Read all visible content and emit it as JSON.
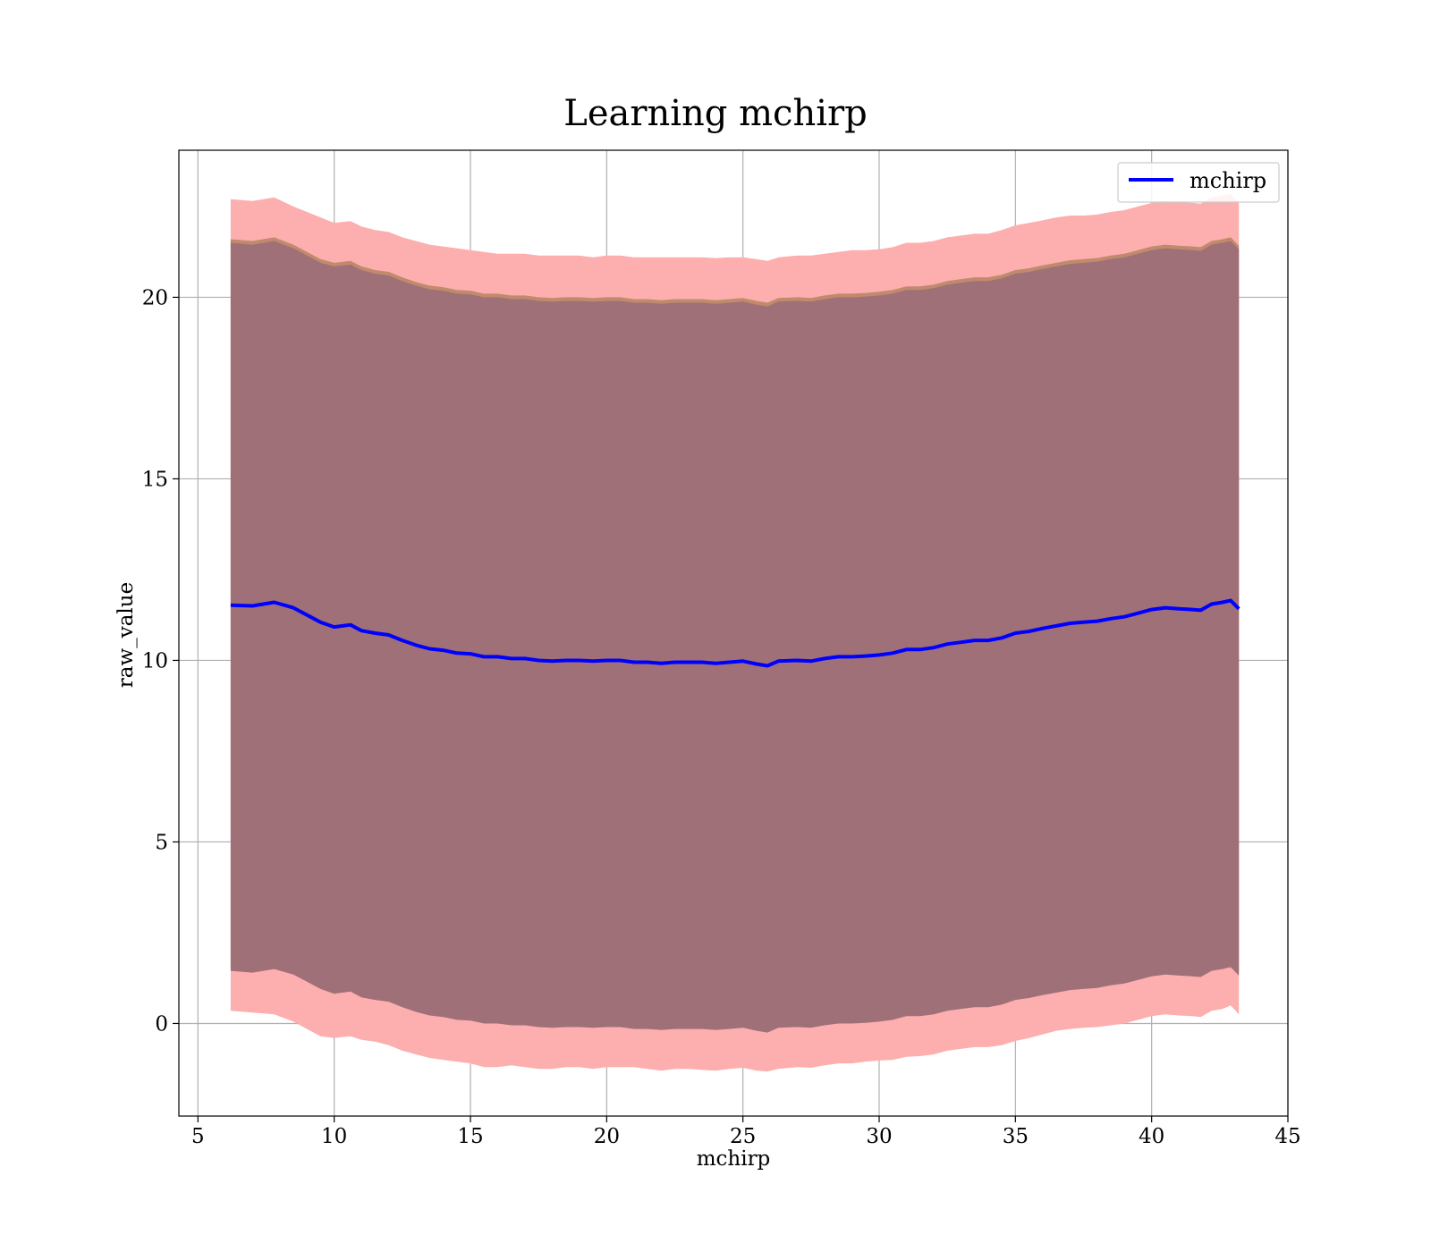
{
  "chart_data": {
    "type": "area",
    "title": "Learning mchirp",
    "xlabel": "mchirp",
    "ylabel": "raw_value",
    "xlim": [
      4.3,
      45
    ],
    "ylim": [
      -2.55,
      24.05
    ],
    "xticks": [
      5,
      10,
      15,
      20,
      25,
      30,
      35,
      40,
      45
    ],
    "yticks": [
      0,
      5,
      10,
      15,
      20
    ],
    "xtick_labels": [
      "5",
      "10",
      "15",
      "20",
      "25",
      "30",
      "35",
      "40",
      "45"
    ],
    "ytick_labels": [
      "0",
      "5",
      "10",
      "15",
      "20"
    ],
    "grid": true,
    "legend": {
      "position": "top-right",
      "entries": [
        "mchirp"
      ]
    },
    "colors": {
      "line": "#0000ff",
      "outer_band": "#fdaeae",
      "middle_band": "#c08a6c",
      "inner_band": "#a07078",
      "grid": "#b0b0b0"
    },
    "x": [
      6.2,
      7,
      7.8,
      8.5,
      9,
      9.5,
      10,
      10.6,
      11,
      11.5,
      12,
      12.5,
      13,
      13.5,
      14,
      14.5,
      15,
      15.5,
      16,
      16.5,
      17,
      17.5,
      18,
      18.5,
      19,
      19.5,
      20,
      20.5,
      21,
      21.5,
      22,
      22.5,
      23,
      23.5,
      24,
      24.5,
      25,
      25.5,
      25.9,
      26.3,
      27,
      27.5,
      28,
      28.5,
      29,
      29.5,
      30,
      30.5,
      31,
      31.5,
      32,
      32.5,
      33,
      33.5,
      34,
      34.5,
      35,
      35.5,
      36,
      36.5,
      37,
      37.5,
      38,
      38.5,
      39,
      39.5,
      40,
      40.5,
      41,
      41.5,
      41.8,
      42.2,
      42.6,
      42.9,
      43.2
    ],
    "series": [
      {
        "name": "mchirp",
        "values": [
          11.52,
          11.5,
          11.6,
          11.45,
          11.25,
          11.05,
          10.92,
          10.98,
          10.82,
          10.75,
          10.7,
          10.55,
          10.42,
          10.32,
          10.28,
          10.2,
          10.18,
          10.1,
          10.1,
          10.05,
          10.05,
          10.0,
          9.98,
          10.0,
          10.0,
          9.98,
          10.0,
          10.0,
          9.95,
          9.95,
          9.92,
          9.95,
          9.95,
          9.95,
          9.92,
          9.95,
          9.98,
          9.9,
          9.85,
          9.98,
          10.0,
          9.98,
          10.05,
          10.1,
          10.1,
          10.12,
          10.15,
          10.2,
          10.3,
          10.3,
          10.35,
          10.45,
          10.5,
          10.55,
          10.55,
          10.62,
          10.75,
          10.8,
          10.88,
          10.95,
          11.02,
          11.05,
          11.08,
          11.15,
          11.2,
          11.3,
          11.4,
          11.45,
          11.42,
          11.4,
          11.38,
          11.55,
          11.6,
          11.65,
          11.42
        ]
      }
    ],
    "bands": [
      {
        "lower": [
          0.35,
          0.3,
          0.25,
          0.05,
          -0.15,
          -0.35,
          -0.4,
          -0.35,
          -0.45,
          -0.5,
          -0.6,
          -0.75,
          -0.85,
          -0.95,
          -1.0,
          -1.05,
          -1.1,
          -1.2,
          -1.2,
          -1.15,
          -1.2,
          -1.25,
          -1.25,
          -1.2,
          -1.2,
          -1.25,
          -1.2,
          -1.2,
          -1.2,
          -1.25,
          -1.3,
          -1.25,
          -1.25,
          -1.28,
          -1.3,
          -1.25,
          -1.22,
          -1.3,
          -1.32,
          -1.25,
          -1.2,
          -1.22,
          -1.15,
          -1.1,
          -1.1,
          -1.05,
          -1.02,
          -1.0,
          -0.92,
          -0.9,
          -0.85,
          -0.75,
          -0.7,
          -0.65,
          -0.65,
          -0.6,
          -0.48,
          -0.4,
          -0.3,
          -0.2,
          -0.15,
          -0.12,
          -0.1,
          -0.05,
          0.0,
          0.1,
          0.2,
          0.25,
          0.22,
          0.2,
          0.18,
          0.35,
          0.4,
          0.5,
          0.25
        ],
        "upper": [
          22.7,
          22.65,
          22.75,
          22.5,
          22.35,
          22.2,
          22.05,
          22.1,
          21.95,
          21.85,
          21.8,
          21.65,
          21.55,
          21.45,
          21.4,
          21.35,
          21.3,
          21.25,
          21.2,
          21.2,
          21.2,
          21.15,
          21.15,
          21.15,
          21.15,
          21.1,
          21.15,
          21.15,
          21.1,
          21.1,
          21.1,
          21.1,
          21.1,
          21.1,
          21.08,
          21.1,
          21.1,
          21.05,
          21.0,
          21.1,
          21.15,
          21.15,
          21.2,
          21.25,
          21.3,
          21.3,
          21.32,
          21.38,
          21.5,
          21.5,
          21.55,
          21.65,
          21.7,
          21.75,
          21.75,
          21.85,
          21.98,
          22.05,
          22.12,
          22.2,
          22.25,
          22.25,
          22.28,
          22.35,
          22.4,
          22.5,
          22.6,
          22.65,
          22.62,
          22.6,
          22.58,
          22.75,
          22.8,
          22.85,
          22.62
        ]
      },
      {
        "lower": [
          1.55,
          1.5,
          1.6,
          1.45,
          1.25,
          1.05,
          0.92,
          0.98,
          0.82,
          0.75,
          0.7,
          0.55,
          0.42,
          0.32,
          0.28,
          0.2,
          0.18,
          0.1,
          0.1,
          0.05,
          0.05,
          0.0,
          -0.02,
          0.0,
          0.0,
          -0.02,
          0.0,
          0.0,
          -0.05,
          -0.05,
          -0.08,
          -0.05,
          -0.05,
          -0.05,
          -0.08,
          -0.05,
          -0.02,
          -0.1,
          -0.15,
          -0.02,
          0.0,
          -0.02,
          0.05,
          0.1,
          0.1,
          0.12,
          0.15,
          0.2,
          0.3,
          0.3,
          0.35,
          0.45,
          0.5,
          0.55,
          0.55,
          0.62,
          0.75,
          0.8,
          0.88,
          0.95,
          1.02,
          1.05,
          1.08,
          1.15,
          1.2,
          1.3,
          1.4,
          1.45,
          1.42,
          1.4,
          1.38,
          1.55,
          1.6,
          1.65,
          1.42
        ],
        "upper": [
          21.6,
          21.55,
          21.65,
          21.45,
          21.25,
          21.05,
          20.95,
          21.0,
          20.85,
          20.75,
          20.7,
          20.55,
          20.42,
          20.32,
          20.28,
          20.2,
          20.18,
          20.1,
          20.1,
          20.05,
          20.05,
          20.0,
          19.98,
          20.0,
          20.0,
          19.98,
          20.0,
          20.0,
          19.95,
          19.95,
          19.92,
          19.95,
          19.95,
          19.95,
          19.92,
          19.95,
          19.98,
          19.9,
          19.85,
          19.98,
          20.0,
          19.98,
          20.05,
          20.1,
          20.1,
          20.12,
          20.15,
          20.2,
          20.3,
          20.3,
          20.35,
          20.45,
          20.5,
          20.55,
          20.55,
          20.62,
          20.75,
          20.8,
          20.88,
          20.95,
          21.02,
          21.05,
          21.08,
          21.15,
          21.2,
          21.3,
          21.4,
          21.45,
          21.42,
          21.4,
          21.38,
          21.55,
          21.6,
          21.65,
          21.42
        ]
      },
      {
        "lower": [
          1.45,
          1.4,
          1.5,
          1.35,
          1.15,
          0.95,
          0.82,
          0.88,
          0.72,
          0.65,
          0.6,
          0.45,
          0.32,
          0.22,
          0.18,
          0.1,
          0.08,
          0.0,
          0.0,
          -0.05,
          -0.05,
          -0.1,
          -0.12,
          -0.1,
          -0.1,
          -0.12,
          -0.1,
          -0.1,
          -0.15,
          -0.15,
          -0.18,
          -0.15,
          -0.15,
          -0.15,
          -0.18,
          -0.15,
          -0.12,
          -0.2,
          -0.25,
          -0.12,
          -0.1,
          -0.12,
          -0.05,
          0.0,
          0.0,
          0.02,
          0.05,
          0.1,
          0.2,
          0.2,
          0.25,
          0.35,
          0.4,
          0.45,
          0.45,
          0.52,
          0.65,
          0.7,
          0.78,
          0.85,
          0.92,
          0.95,
          0.98,
          1.05,
          1.1,
          1.2,
          1.3,
          1.35,
          1.32,
          1.3,
          1.28,
          1.45,
          1.5,
          1.55,
          1.32
        ],
        "upper": [
          21.5,
          21.45,
          21.55,
          21.35,
          21.15,
          20.95,
          20.85,
          20.9,
          20.75,
          20.65,
          20.6,
          20.45,
          20.32,
          20.22,
          20.18,
          20.1,
          20.08,
          20.0,
          20.0,
          19.95,
          19.95,
          19.9,
          19.88,
          19.9,
          19.9,
          19.88,
          19.9,
          19.9,
          19.85,
          19.85,
          19.82,
          19.85,
          19.85,
          19.85,
          19.82,
          19.85,
          19.88,
          19.8,
          19.75,
          19.88,
          19.9,
          19.88,
          19.95,
          20.0,
          20.0,
          20.02,
          20.05,
          20.1,
          20.2,
          20.2,
          20.25,
          20.35,
          20.4,
          20.45,
          20.45,
          20.52,
          20.65,
          20.7,
          20.78,
          20.85,
          20.92,
          20.95,
          20.98,
          21.05,
          21.1,
          21.2,
          21.3,
          21.35,
          21.32,
          21.3,
          21.28,
          21.45,
          21.5,
          21.55,
          21.32
        ]
      }
    ]
  }
}
